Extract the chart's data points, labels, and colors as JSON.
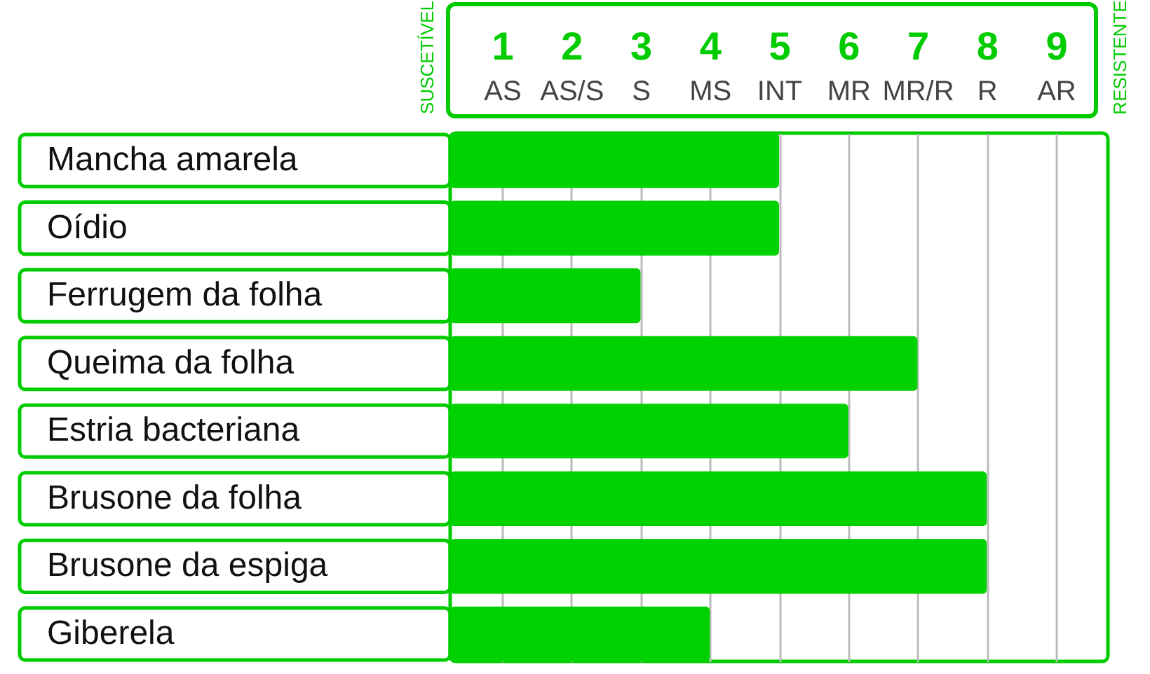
{
  "chart_data": {
    "type": "bar",
    "orientation": "horizontal",
    "categories": [
      "Mancha amarela",
      "Oídio",
      "Ferrugem da folha",
      "Queima da folha",
      "Estria bacteriana",
      "Brusone da folha",
      "Brusone da espiga",
      "Giberela"
    ],
    "values": [
      5,
      5,
      3,
      7,
      6,
      8,
      8,
      4
    ],
    "color": "#00d100",
    "xlim": [
      0.25,
      9.75
    ],
    "xticks": [
      {
        "value": 1,
        "label": "1\nAS"
      },
      {
        "value": 2,
        "label": "2\nAS/S"
      },
      {
        "value": 3,
        "label": "3\nS"
      },
      {
        "value": 4,
        "label": "4\nMS"
      },
      {
        "value": 5,
        "label": "5\nINT"
      },
      {
        "value": 6,
        "label": "6\nMR"
      },
      {
        "value": 7,
        "label": "7\nMR/R"
      },
      {
        "value": 8,
        "label": "8\nR"
      },
      {
        "value": 9,
        "label": "9\nAR"
      }
    ],
    "grid": "x",
    "annotations": [
      "SUSCETÍVEL",
      "RESISTENTE"
    ]
  }
}
